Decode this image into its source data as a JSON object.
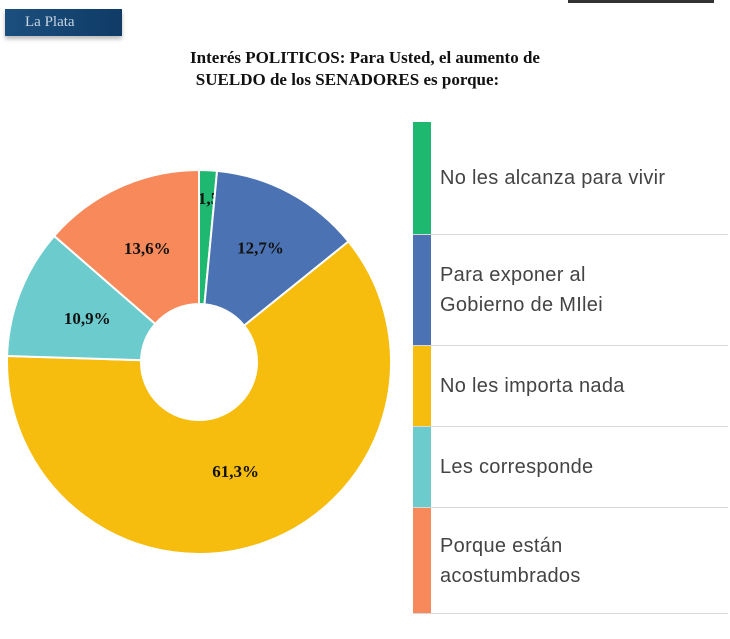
{
  "header": {
    "badge": "La Plata"
  },
  "chart_data": {
    "type": "pie",
    "title_lines": [
      "Interés POLITICOS: Para Usted, el aumento de",
      "SUELDO de los SENADORES es porque:"
    ],
    "categories": [
      "No les alcanza para vivir",
      "Para exponer al Gobierno de MIlei",
      "No les importa nada",
      "Les corresponde",
      "Porque están acostumbrados"
    ],
    "values": [
      1.5,
      12.7,
      61.3,
      10.9,
      13.6
    ],
    "labels": [
      "1,5%",
      "12,7%",
      "61,3%",
      "10,9%",
      "13,6%"
    ],
    "colors": [
      "#1fb870",
      "#4b73b3",
      "#f6bd0f",
      "#6ccbcc",
      "#f7895a"
    ],
    "legend_placement": "right"
  }
}
